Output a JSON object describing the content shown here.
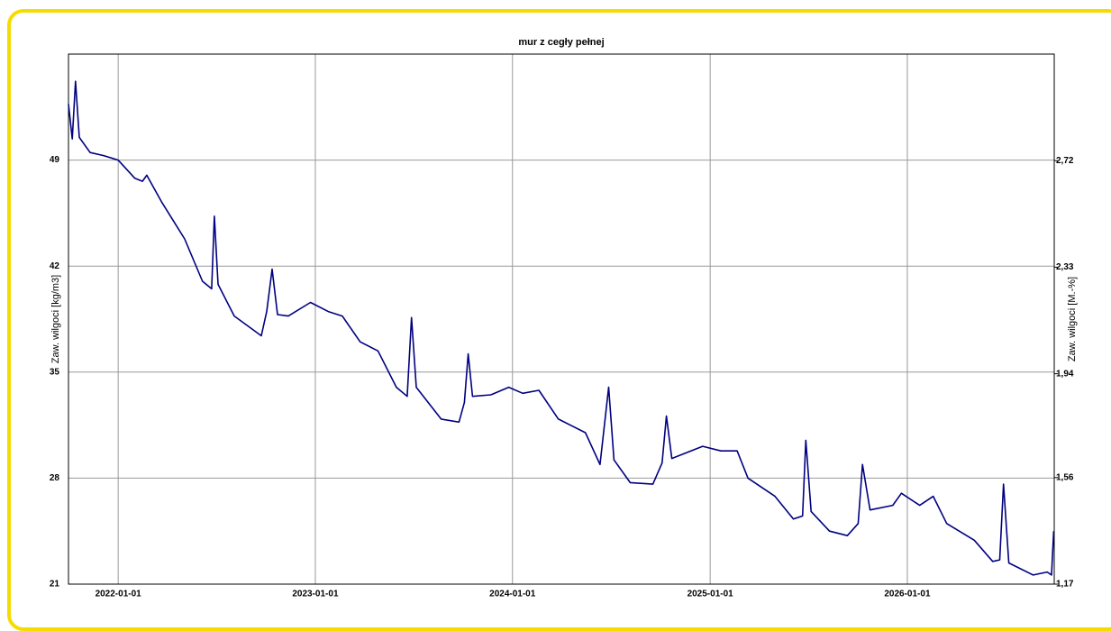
{
  "chart_data": {
    "type": "line",
    "title": "mur z cegły pełnej",
    "ylabel": "Zaw. wilgoci [kg/m3]",
    "y2label": "Zaw. wilgoci [M.-%]",
    "color": "#000080",
    "grid": true,
    "xlim": [
      "2021-10-01",
      "2026-09-30"
    ],
    "xticks": [
      "2022-01-01",
      "2023-01-01",
      "2024-01-01",
      "2025-01-01",
      "2026-01-01"
    ],
    "ylim": [
      21,
      56
    ],
    "yticks": [
      21,
      28,
      35,
      42,
      49
    ],
    "y2lim": [
      1.17,
      3.11
    ],
    "y2ticks": [
      {
        "value": 1.17,
        "label": "1,17"
      },
      {
        "value": 1.56,
        "label": "1,56"
      },
      {
        "value": 1.94,
        "label": "1,94"
      },
      {
        "value": 2.33,
        "label": "2,33"
      },
      {
        "value": 2.72,
        "label": "2,72"
      }
    ],
    "x": [
      "2021-10-01",
      "2021-10-08",
      "2021-10-14",
      "2021-10-21",
      "2021-11-10",
      "2021-12-05",
      "2022-01-01",
      "2022-02-01",
      "2022-02-15",
      "2022-02-23",
      "2022-03-23",
      "2022-05-04",
      "2022-06-06",
      "2022-06-23",
      "2022-06-28",
      "2022-07-05",
      "2022-08-04",
      "2022-09-23",
      "2022-10-03",
      "2022-10-13",
      "2022-10-23",
      "2022-11-12",
      "2022-12-23",
      "2023-01-25",
      "2023-02-20",
      "2023-03-25",
      "2023-04-27",
      "2023-05-31",
      "2023-06-20",
      "2023-06-28",
      "2023-07-07",
      "2023-08-22",
      "2023-09-24",
      "2023-10-04",
      "2023-10-11",
      "2023-10-19",
      "2023-11-22",
      "2023-12-25",
      "2024-01-20",
      "2024-02-19",
      "2024-03-26",
      "2024-05-15",
      "2024-06-11",
      "2024-06-27",
      "2024-07-07",
      "2024-08-06",
      "2024-09-17",
      "2024-10-04",
      "2024-10-12",
      "2024-10-22",
      "2024-12-18",
      "2025-01-21",
      "2025-02-20",
      "2025-03-12",
      "2025-05-01",
      "2025-06-04",
      "2025-06-21",
      "2025-06-27",
      "2025-07-07",
      "2025-08-10",
      "2025-09-12",
      "2025-10-02",
      "2025-10-10",
      "2025-10-24",
      "2025-12-05",
      "2025-12-21",
      "2026-01-24",
      "2026-02-18",
      "2026-03-15",
      "2026-05-05",
      "2026-06-08",
      "2026-06-21",
      "2026-06-28",
      "2026-07-08",
      "2026-08-22",
      "2026-09-17",
      "2026-09-25",
      "2026-09-29"
    ],
    "values": [
      52.7,
      50.4,
      54.2,
      50.5,
      49.5,
      49.3,
      49.0,
      47.8,
      47.6,
      48.0,
      46.2,
      43.8,
      41.0,
      40.5,
      45.3,
      40.8,
      38.7,
      37.4,
      39.0,
      41.8,
      38.8,
      38.7,
      39.6,
      39.0,
      38.7,
      37.0,
      36.4,
      34.0,
      33.4,
      38.6,
      34.0,
      31.9,
      31.7,
      33.0,
      36.2,
      33.4,
      33.5,
      34.0,
      33.6,
      33.8,
      31.9,
      31.0,
      28.9,
      34.0,
      29.2,
      27.7,
      27.6,
      29.0,
      32.1,
      29.3,
      30.1,
      29.8,
      29.8,
      28.0,
      26.8,
      25.3,
      25.5,
      30.5,
      25.8,
      24.5,
      24.2,
      25.0,
      28.9,
      25.9,
      26.2,
      27.0,
      26.2,
      26.8,
      25.0,
      23.9,
      22.5,
      22.6,
      27.6,
      22.4,
      21.6,
      21.8,
      21.6,
      24.5
    ]
  }
}
